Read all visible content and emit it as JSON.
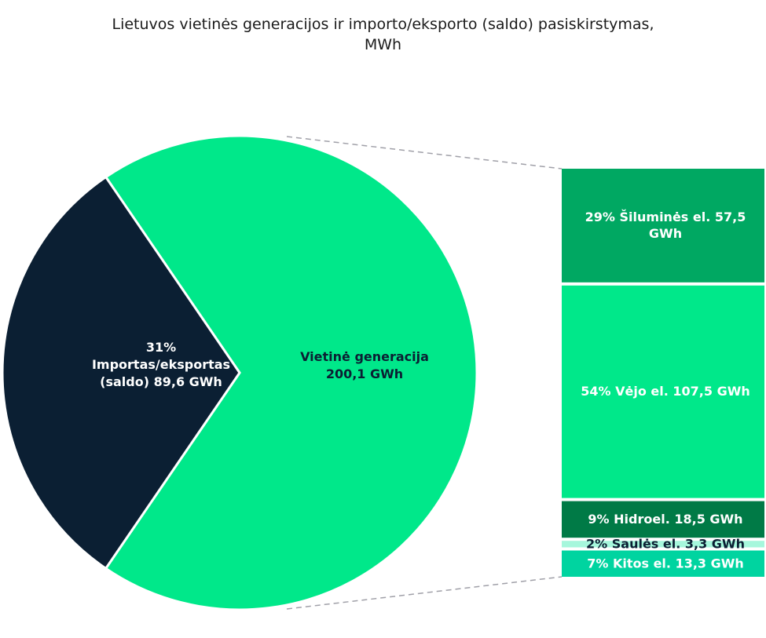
{
  "chart_data": {
    "type": "pie",
    "title_lines": [
      "Lietuvos vietinės generacijos ir importo/eksporto  (saldo) pasiskirstymas,",
      "MWh"
    ],
    "slices": [
      {
        "name": "Importas/eksportas (saldo)",
        "value": 89.6,
        "percent": 31,
        "color": "#0b1f33",
        "label_lines": [
          "31%",
          "Importas/eksportas",
          "(saldo)  89,6 GWh"
        ],
        "label_color": "#ffffff"
      },
      {
        "name": "Vietinė generacija",
        "value": 200.1,
        "color": "#00e88a",
        "label_lines": [
          "Vietinė generacija",
          "200,1 GWh"
        ],
        "label_color": "#0b1f33"
      }
    ],
    "breakdown": {
      "of_slice": "Vietinė generacija",
      "unit": "GWh",
      "segments": [
        {
          "name": "Šiluminės el.",
          "value": 57.5,
          "percent": 29,
          "color": "#00a862",
          "label_lines": [
            "29% Šiluminės el.  57,5",
            "GWh"
          ],
          "label_color": "#ffffff"
        },
        {
          "name": "Vėjo el.",
          "value": 107.5,
          "percent": 54,
          "color": "#00e88a",
          "label_lines": [
            "54% Vėjo el.  107,5 GWh"
          ],
          "label_color": "#ffffff"
        },
        {
          "name": "Hidroel.",
          "value": 18.5,
          "percent": 9,
          "color": "#007a46",
          "label_lines": [
            "9% Hidroel.  18,5 GWh"
          ],
          "label_color": "#ffffff"
        },
        {
          "name": "Saulės el.",
          "value": 3.3,
          "percent": 2,
          "color": "#a6f7dc",
          "label_lines": [
            "2% Saulės el.  3,3 GWh"
          ],
          "label_color": "#0b1f33"
        },
        {
          "name": "Kitos el.",
          "value": 13.3,
          "percent": 7,
          "color": "#00d4a0",
          "label_lines": [
            "7% Kitos el.  13,3 GWh"
          ],
          "label_color": "#ffffff"
        }
      ]
    },
    "connector_color": "#a0a0a8",
    "legend": "none"
  }
}
